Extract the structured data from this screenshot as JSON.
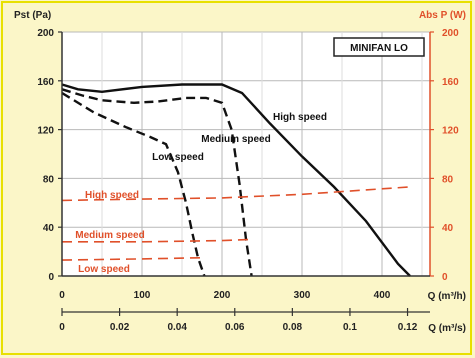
{
  "chart_data": {
    "type": "line",
    "title_box": "MINIFAN LO",
    "left_axis": {
      "label": "Pst (Pa)",
      "ylim": [
        0,
        200
      ],
      "ticks": [
        0,
        40,
        80,
        120,
        160,
        200
      ]
    },
    "right_axis": {
      "label": "Abs P (W)",
      "ylim": [
        0,
        200
      ],
      "ticks": [
        0,
        40,
        80,
        120,
        160,
        200
      ],
      "color": "#e0502a"
    },
    "x_axis_top": {
      "label": "Q (m³/h)",
      "xlim": [
        0,
        460
      ],
      "ticks": [
        0,
        100,
        200,
        300,
        400
      ]
    },
    "x_axis_bottom": {
      "label": "Q (m³/s)",
      "xlim": [
        0,
        0.1278
      ],
      "ticks": [
        "0",
        "0.02",
        "0.04",
        "0.06",
        "0.08",
        "0.1",
        "0.12"
      ]
    },
    "grid": true,
    "labels": {
      "high_speed": "High speed",
      "medium_speed": "Medium speed",
      "low_speed": "Low speed",
      "power_high": "High speed",
      "power_medium": "Medium speed",
      "power_low": "Low speed"
    },
    "series": [
      {
        "name": "High speed",
        "axis": "left",
        "style": "solid",
        "color": "#111111",
        "x": [
          0,
          20,
          50,
          100,
          150,
          200,
          225,
          260,
          300,
          340,
          380,
          420,
          435
        ],
        "y": [
          157,
          153,
          151,
          155,
          157,
          157,
          150,
          125,
          98,
          73,
          45,
          10,
          0
        ]
      },
      {
        "name": "Medium speed",
        "axis": "left",
        "style": "dashed",
        "color": "#111111",
        "x": [
          0,
          25,
          50,
          90,
          120,
          155,
          180,
          200,
          212,
          222,
          230,
          237
        ],
        "y": [
          153,
          148,
          144,
          142,
          143,
          146,
          146,
          142,
          120,
          75,
          30,
          0
        ]
      },
      {
        "name": "Low speed",
        "axis": "left",
        "style": "dashed",
        "color": "#111111",
        "x": [
          0,
          40,
          80,
          110,
          130,
          145,
          155,
          163,
          170,
          178
        ],
        "y": [
          150,
          134,
          122,
          114,
          108,
          85,
          60,
          35,
          15,
          0
        ]
      },
      {
        "name": "High speed power",
        "axis": "right",
        "style": "dashed",
        "color": "#e0502a",
        "x": [
          0,
          100,
          200,
          300,
          435
        ],
        "y": [
          62,
          63,
          64,
          67,
          73
        ]
      },
      {
        "name": "Medium speed power",
        "axis": "right",
        "style": "dashed",
        "color": "#e0502a",
        "x": [
          0,
          100,
          200,
          237
        ],
        "y": [
          28,
          28,
          29,
          30
        ]
      },
      {
        "name": "Low speed power",
        "axis": "right",
        "style": "dashed",
        "color": "#e0502a",
        "x": [
          0,
          100,
          178
        ],
        "y": [
          13,
          14,
          15
        ]
      }
    ]
  }
}
